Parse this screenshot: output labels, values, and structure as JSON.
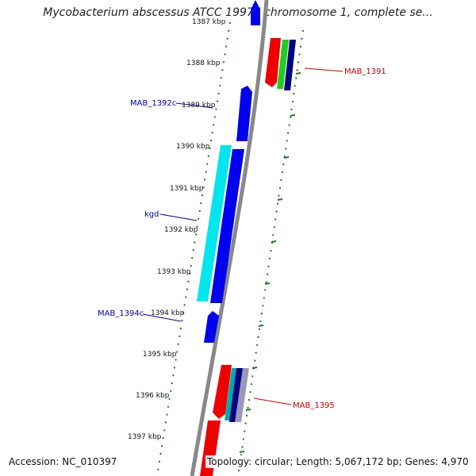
{
  "title": "Mycobacterium abscessus ATCC 19977 chromosome 1, complete se...",
  "footer": {
    "accession": "Accession: NC_010397",
    "summary": "Topology: circular; Length: 5,067,172 bp; Genes: 4,970"
  },
  "ticks": [
    {
      "label": "1387 kbp"
    },
    {
      "label": "1388 kbp"
    },
    {
      "label": "1389 kbp"
    },
    {
      "label": "1390 kbp"
    },
    {
      "label": "1391 kbp"
    },
    {
      "label": "1392 kbp"
    },
    {
      "label": "1393 kbp"
    },
    {
      "label": "1394 kbp"
    },
    {
      "label": "1395 kbp"
    },
    {
      "label": "1396 kbp"
    },
    {
      "label": "1397 kbp"
    }
  ],
  "gene_labels": [
    {
      "label": "MAB_1391",
      "color": "#cc0000"
    },
    {
      "label": "MAB_1392c",
      "color": "#0000aa"
    },
    {
      "label": "kgd",
      "color": "#0000aa"
    },
    {
      "label": "MAB_1394c",
      "color": "#0000aa"
    },
    {
      "label": "MAB_1395",
      "color": "#cc0000"
    }
  ],
  "colors": {
    "forward_gene": "#ee0000",
    "reverse_gene": "#0000ee",
    "cyan_gene": "#00e5ee",
    "green_gene": "#22cc22",
    "navy_gene": "#000080",
    "backbone": "#888888",
    "tick": "#1a7a1a"
  }
}
